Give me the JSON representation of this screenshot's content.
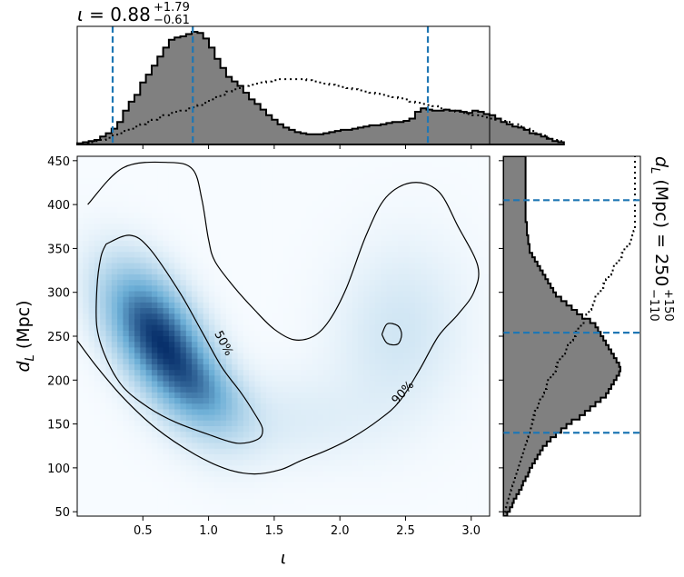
{
  "chart_data": [
    {
      "type": "heatmap",
      "panel": "joint",
      "xlabel_base": "ι",
      "ylabel_base": "d",
      "ylabel_sub": "L",
      "ylabel_unit": " (Mpc)",
      "xlim": [
        0.0,
        3.14
      ],
      "ylim": [
        45,
        455
      ],
      "xticks": [
        0.5,
        1.0,
        1.5,
        2.0,
        2.5,
        3.0
      ],
      "xtick_labels": [
        "0.5",
        "1.0",
        "1.5",
        "2.0",
        "2.5",
        "3.0"
      ],
      "yticks": [
        50,
        100,
        150,
        200,
        250,
        300,
        350,
        400,
        450
      ],
      "ytick_labels": [
        "50",
        "100",
        "150",
        "200",
        "250",
        "300",
        "350",
        "400",
        "450"
      ],
      "colormap": "Blues",
      "contours": [
        {
          "label": "50%",
          "points": [
            [
              0.22,
              355
            ],
            [
              0.4,
              365
            ],
            [
              0.55,
              350
            ],
            [
              0.78,
              300
            ],
            [
              0.95,
              255
            ],
            [
              1.1,
              215
            ],
            [
              1.25,
              185
            ],
            [
              1.35,
              162
            ],
            [
              1.41,
              145
            ],
            [
              1.38,
              133
            ],
            [
              1.22,
              128
            ],
            [
              1.0,
              138
            ],
            [
              0.75,
              152
            ],
            [
              0.55,
              168
            ],
            [
              0.35,
              192
            ],
            [
              0.22,
              225
            ],
            [
              0.15,
              260
            ],
            [
              0.15,
              305
            ],
            [
              0.18,
              340
            ],
            [
              0.22,
              355
            ]
          ]
        },
        {
          "label": "90%",
          "points": [
            [
              0.08,
              400
            ],
            [
              0.35,
              442
            ],
            [
              0.7,
              448
            ],
            [
              0.88,
              440
            ],
            [
              0.95,
              405
            ],
            [
              1.0,
              360
            ],
            [
              1.05,
              335
            ],
            [
              1.2,
              305
            ],
            [
              1.35,
              280
            ],
            [
              1.5,
              258
            ],
            [
              1.65,
              246
            ],
            [
              1.8,
              250
            ],
            [
              1.92,
              268
            ],
            [
              2.05,
              305
            ],
            [
              2.2,
              365
            ],
            [
              2.35,
              408
            ],
            [
              2.55,
              425
            ],
            [
              2.75,
              415
            ],
            [
              2.9,
              375
            ],
            [
              3.05,
              330
            ],
            [
              3.02,
              300
            ],
            [
              2.9,
              275
            ],
            [
              2.75,
              250
            ],
            [
              2.6,
              210
            ],
            [
              2.45,
              175
            ],
            [
              2.3,
              155
            ],
            [
              2.1,
              135
            ],
            [
              1.9,
              120
            ],
            [
              1.7,
              108
            ],
            [
              1.55,
              98
            ],
            [
              1.35,
              93
            ],
            [
              1.15,
              98
            ],
            [
              0.9,
              115
            ],
            [
              0.6,
              145
            ],
            [
              0.35,
              180
            ],
            [
              0.15,
              215
            ],
            [
              0.0,
              245
            ]
          ]
        },
        {
          "label": "",
          "points": [
            [
              2.32,
              252
            ],
            [
              2.36,
              242
            ],
            [
              2.44,
              241
            ],
            [
              2.47,
              252
            ],
            [
              2.44,
              262
            ],
            [
              2.36,
              264
            ],
            [
              2.32,
              252
            ]
          ]
        }
      ],
      "density_components": [
        {
          "mx": 0.68,
          "my": 233,
          "sx": 0.27,
          "sy": 52,
          "rho": -0.6,
          "w": 1.0
        },
        {
          "mx": 0.52,
          "my": 275,
          "sx": 0.22,
          "sy": 40,
          "rho": -0.3,
          "w": 0.3
        },
        {
          "mx": 1.0,
          "my": 185,
          "sx": 0.22,
          "sy": 30,
          "rho": -0.5,
          "w": 0.25
        },
        {
          "mx": 2.45,
          "my": 255,
          "sx": 0.32,
          "sy": 65,
          "rho": 0.1,
          "w": 0.13
        },
        {
          "mx": 1.6,
          "my": 155,
          "sx": 0.45,
          "sy": 35,
          "rho": 0.0,
          "w": 0.08
        }
      ]
    },
    {
      "type": "bar",
      "panel": "top-marginal",
      "variable": "ι",
      "bin_edges_start": 0.0,
      "bin_width": 0.0436,
      "values": [
        1,
        2,
        3,
        4,
        7,
        10,
        14,
        20,
        30,
        38,
        44,
        55,
        62,
        70,
        78,
        86,
        93,
        95,
        96,
        98,
        100,
        99,
        94,
        86,
        76,
        68,
        60,
        56,
        52,
        46,
        40,
        36,
        31,
        26,
        22,
        18,
        15,
        13,
        11,
        10,
        9,
        9,
        9,
        10,
        11,
        12,
        13,
        13,
        14,
        15,
        16,
        17,
        17,
        18,
        19,
        20,
        20,
        21,
        23,
        29,
        32,
        31,
        30,
        30,
        31,
        30,
        30,
        29,
        28,
        30,
        29,
        27,
        26,
        23,
        20,
        18,
        16,
        15,
        13,
        10,
        9,
        7,
        5,
        3,
        2
      ],
      "prior_values": [
        1,
        1,
        2,
        3,
        4,
        6,
        8,
        10,
        12,
        14,
        16,
        18,
        20,
        22,
        24,
        26,
        28,
        29,
        30,
        32,
        33,
        35,
        37,
        40,
        42,
        44,
        47,
        49,
        50,
        52,
        53,
        54,
        55,
        56,
        57,
        58,
        58,
        58,
        58,
        58,
        57,
        56,
        55,
        54,
        53,
        52,
        51,
        50,
        49,
        48,
        47,
        46,
        45,
        44,
        43,
        42,
        41,
        40,
        38,
        37,
        36,
        35,
        34,
        32,
        31,
        30,
        29,
        28,
        27,
        26,
        25,
        24,
        23,
        22,
        21,
        20,
        18,
        16,
        14,
        12,
        10,
        8,
        6,
        4,
        3
      ],
      "quantile_lines": [
        0.27,
        0.88,
        2.67
      ],
      "median": "0.88",
      "err_plus": "+1.79",
      "err_minus": "−0.61",
      "stat_symbol": "ι"
    },
    {
      "type": "bar",
      "panel": "right-marginal",
      "variable": "d_L",
      "orientation": "horizontal",
      "bin_edges_start": 45,
      "bin_width": 5.0,
      "values": [
        3,
        5,
        7,
        8,
        10,
        12,
        14,
        15,
        17,
        19,
        20,
        22,
        24,
        26,
        28,
        30,
        33,
        36,
        40,
        44,
        48,
        52,
        58,
        62,
        66,
        70,
        74,
        78,
        80,
        82,
        84,
        86,
        88,
        89,
        88,
        86,
        84,
        82,
        80,
        78,
        76,
        74,
        72,
        70,
        66,
        60,
        56,
        52,
        48,
        44,
        40,
        38,
        36,
        34,
        32,
        30,
        28,
        26,
        24,
        22,
        20,
        20,
        19,
        19,
        18,
        18,
        18,
        17,
        17,
        17,
        17,
        17,
        17,
        17,
        17,
        17,
        17,
        17,
        17,
        17,
        17,
        17
      ],
      "prior_values": [
        1,
        2,
        3,
        4,
        5,
        6,
        7,
        8,
        9,
        10,
        11,
        12,
        13,
        14,
        15,
        16,
        17,
        18,
        19,
        20,
        21,
        22,
        23,
        24,
        26,
        27,
        28,
        30,
        31,
        33,
        34,
        36,
        38,
        40,
        41,
        43,
        45,
        47,
        49,
        51,
        53,
        55,
        57,
        59,
        61,
        63,
        65,
        67,
        68,
        70,
        72,
        74,
        76,
        78,
        80,
        82,
        84,
        86,
        88,
        90,
        92,
        94,
        96,
        98,
        99,
        100,
        100,
        100,
        100,
        100,
        100,
        100,
        100,
        100,
        100,
        100,
        100,
        100,
        100,
        100,
        100,
        100
      ],
      "quantile_lines": [
        140,
        254,
        405
      ],
      "stat_symbol": "d",
      "stat_sub": "L",
      "stat_unit": " (Mpc) = 250",
      "err_plus": "+150",
      "err_minus": "−110"
    }
  ],
  "colors": {
    "hist_fill": "#808080",
    "quantile_line": "#1f77b4",
    "cmap_low": "#f7fbff",
    "cmap_high": "#08306b"
  }
}
